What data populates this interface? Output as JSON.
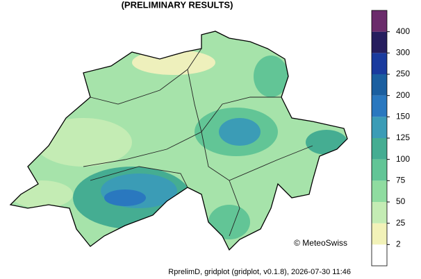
{
  "title": "(PRELIMINARY RESULTS)",
  "credit": "© MeteoSwiss",
  "footer": "RprelimD, gridplot (gridplot, v0.1.8), 2026-07-30 11:46",
  "colorbar": {
    "ticks": [
      2,
      25,
      50,
      75,
      100,
      125,
      150,
      200,
      250,
      300,
      400
    ],
    "colors": [
      "#ffffff",
      "#f2f2b8",
      "#c4ecb4",
      "#8fdca0",
      "#62c596",
      "#45ad92",
      "#3b9cb6",
      "#2a78bf",
      "#1b5fa0",
      "#1a3b9e",
      "#261e5e",
      "#6b2c6b"
    ]
  }
}
